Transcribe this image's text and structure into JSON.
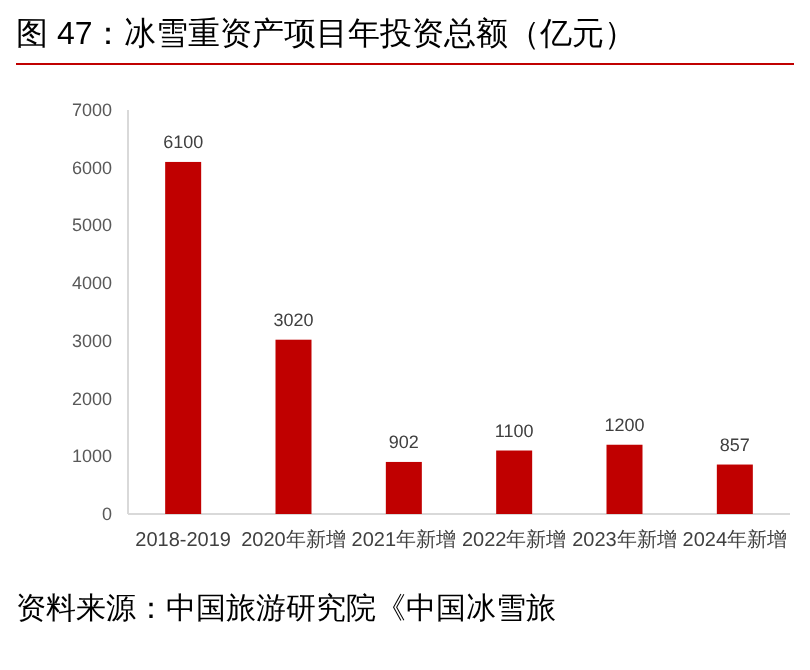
{
  "chart_data": {
    "type": "bar",
    "title": "图 47：冰雪重资产项目年投资总额（亿元）",
    "categories": [
      "2018-2019",
      "2020年新增",
      "2021年新增",
      "2022年新增",
      "2023年新增",
      "2024年新增"
    ],
    "values": [
      6100,
      3020,
      902,
      1100,
      1200,
      857
    ],
    "color": "#c00000",
    "ylim": [
      0,
      7000
    ],
    "yticks": [
      0,
      1000,
      2000,
      3000,
      4000,
      5000,
      6000,
      7000
    ],
    "data_labels": true,
    "grid": false,
    "annotations": [
      "资料来源：中国旅游研究院《中国冰雪旅"
    ]
  }
}
